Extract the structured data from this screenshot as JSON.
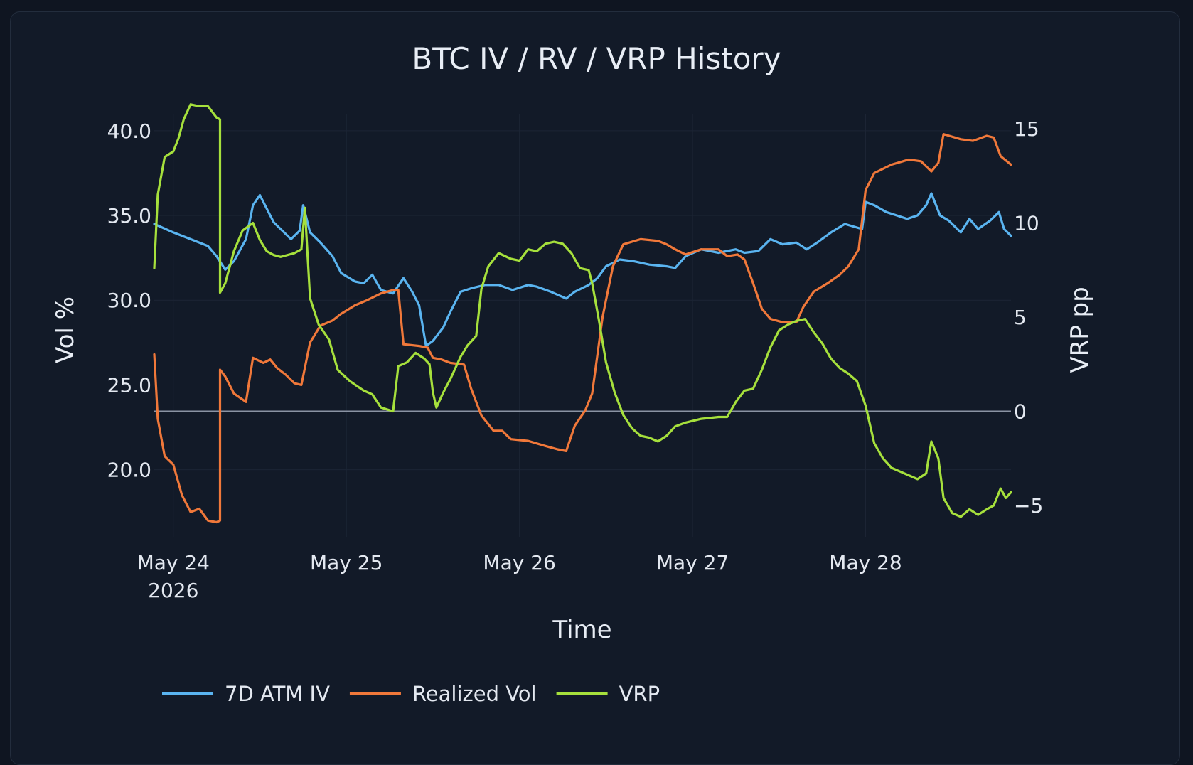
{
  "chart_data": {
    "type": "line",
    "title": "BTC IV / RV / VRP History",
    "xlabel": "Time",
    "ylabel": "Vol %",
    "y2label": "VRP pp",
    "x_ticks": [
      {
        "x": 0,
        "label": "May 24",
        "sub": "2026"
      },
      {
        "x": 1,
        "label": "May 25",
        "sub": ""
      },
      {
        "x": 2,
        "label": "May 26",
        "sub": ""
      },
      {
        "x": 3,
        "label": "May 27",
        "sub": ""
      },
      {
        "x": 4,
        "label": "May 28",
        "sub": ""
      }
    ],
    "x_note": "x values are days after May 24 2026 00:00",
    "xlim": [
      -0.11,
      4.84
    ],
    "ylim": [
      16.0,
      41.0
    ],
    "y_ticks": [
      {
        "v": 20,
        "label": "20.0"
      },
      {
        "v": 25,
        "label": "25.0"
      },
      {
        "v": 30,
        "label": "30.0"
      },
      {
        "v": 35,
        "label": "35.0"
      },
      {
        "v": 40,
        "label": "40.0"
      }
    ],
    "y2lim": [
      -6.7,
      15.8
    ],
    "y2_ticks": [
      {
        "v": -5,
        "label": "−5"
      },
      {
        "v": 0,
        "label": "0"
      },
      {
        "v": 5,
        "label": "5"
      },
      {
        "v": 10,
        "label": "10"
      },
      {
        "v": 15,
        "label": "15"
      }
    ],
    "zero_line_y2": 0,
    "grid": true,
    "legend_position": "bottom",
    "series": [
      {
        "name": "7D ATM IV",
        "color": "#5ab4f0",
        "axis": "y",
        "points": [
          [
            -0.11,
            34.5
          ],
          [
            0.0,
            34.0
          ],
          [
            0.1,
            33.6
          ],
          [
            0.2,
            33.2
          ],
          [
            0.25,
            32.6
          ],
          [
            0.3,
            31.8
          ],
          [
            0.35,
            32.3
          ],
          [
            0.42,
            33.6
          ],
          [
            0.46,
            35.6
          ],
          [
            0.5,
            36.2
          ],
          [
            0.54,
            35.4
          ],
          [
            0.58,
            34.6
          ],
          [
            0.62,
            34.2
          ],
          [
            0.68,
            33.6
          ],
          [
            0.73,
            34.1
          ],
          [
            0.75,
            35.6
          ],
          [
            0.79,
            34.0
          ],
          [
            0.85,
            33.4
          ],
          [
            0.92,
            32.6
          ],
          [
            0.97,
            31.6
          ],
          [
            1.05,
            31.1
          ],
          [
            1.1,
            31.0
          ],
          [
            1.15,
            31.5
          ],
          [
            1.2,
            30.6
          ],
          [
            1.27,
            30.4
          ],
          [
            1.33,
            31.3
          ],
          [
            1.38,
            30.5
          ],
          [
            1.42,
            29.7
          ],
          [
            1.46,
            27.3
          ],
          [
            1.5,
            27.6
          ],
          [
            1.56,
            28.4
          ],
          [
            1.6,
            29.3
          ],
          [
            1.66,
            30.5
          ],
          [
            1.72,
            30.7
          ],
          [
            1.8,
            30.9
          ],
          [
            1.88,
            30.9
          ],
          [
            1.96,
            30.6
          ],
          [
            2.05,
            30.9
          ],
          [
            2.1,
            30.8
          ],
          [
            2.18,
            30.5
          ],
          [
            2.27,
            30.1
          ],
          [
            2.32,
            30.5
          ],
          [
            2.4,
            30.9
          ],
          [
            2.45,
            31.3
          ],
          [
            2.5,
            32.0
          ],
          [
            2.58,
            32.4
          ],
          [
            2.66,
            32.3
          ],
          [
            2.75,
            32.1
          ],
          [
            2.85,
            32.0
          ],
          [
            2.9,
            31.9
          ],
          [
            2.96,
            32.6
          ],
          [
            3.05,
            33.0
          ],
          [
            3.15,
            32.8
          ],
          [
            3.25,
            33.0
          ],
          [
            3.3,
            32.8
          ],
          [
            3.38,
            32.9
          ],
          [
            3.45,
            33.6
          ],
          [
            3.52,
            33.3
          ],
          [
            3.6,
            33.4
          ],
          [
            3.66,
            33.0
          ],
          [
            3.72,
            33.4
          ],
          [
            3.8,
            34.0
          ],
          [
            3.88,
            34.5
          ],
          [
            3.98,
            34.2
          ],
          [
            4.0,
            35.8
          ],
          [
            4.05,
            35.6
          ],
          [
            4.12,
            35.2
          ],
          [
            4.18,
            35.0
          ],
          [
            4.24,
            34.8
          ],
          [
            4.3,
            35.0
          ],
          [
            4.35,
            35.6
          ],
          [
            4.38,
            36.3
          ],
          [
            4.43,
            35.0
          ],
          [
            4.48,
            34.7
          ],
          [
            4.55,
            34.0
          ],
          [
            4.6,
            34.8
          ],
          [
            4.65,
            34.2
          ],
          [
            4.72,
            34.7
          ],
          [
            4.77,
            35.2
          ],
          [
            4.8,
            34.2
          ],
          [
            4.84,
            33.8
          ]
        ]
      },
      {
        "name": "Realized Vol",
        "color": "#f0783a",
        "axis": "y",
        "points": [
          [
            -0.11,
            26.8
          ],
          [
            -0.09,
            23.0
          ],
          [
            -0.05,
            20.8
          ],
          [
            0.0,
            20.3
          ],
          [
            0.05,
            18.5
          ],
          [
            0.1,
            17.5
          ],
          [
            0.15,
            17.7
          ],
          [
            0.2,
            17.0
          ],
          [
            0.25,
            16.9
          ],
          [
            0.27,
            17.0
          ],
          [
            0.27,
            25.9
          ],
          [
            0.3,
            25.5
          ],
          [
            0.35,
            24.5
          ],
          [
            0.42,
            24.0
          ],
          [
            0.46,
            26.6
          ],
          [
            0.52,
            26.3
          ],
          [
            0.56,
            26.5
          ],
          [
            0.6,
            26.0
          ],
          [
            0.65,
            25.6
          ],
          [
            0.7,
            25.1
          ],
          [
            0.74,
            25.0
          ],
          [
            0.79,
            27.5
          ],
          [
            0.85,
            28.5
          ],
          [
            0.92,
            28.8
          ],
          [
            0.97,
            29.2
          ],
          [
            1.05,
            29.7
          ],
          [
            1.12,
            30.0
          ],
          [
            1.2,
            30.4
          ],
          [
            1.27,
            30.6
          ],
          [
            1.3,
            30.6
          ],
          [
            1.33,
            27.4
          ],
          [
            1.42,
            27.3
          ],
          [
            1.47,
            27.2
          ],
          [
            1.5,
            26.6
          ],
          [
            1.55,
            26.5
          ],
          [
            1.6,
            26.3
          ],
          [
            1.68,
            26.2
          ],
          [
            1.72,
            24.8
          ],
          [
            1.78,
            23.2
          ],
          [
            1.85,
            22.3
          ],
          [
            1.9,
            22.3
          ],
          [
            1.95,
            21.8
          ],
          [
            2.05,
            21.7
          ],
          [
            2.15,
            21.4
          ],
          [
            2.22,
            21.2
          ],
          [
            2.27,
            21.1
          ],
          [
            2.32,
            22.6
          ],
          [
            2.38,
            23.5
          ],
          [
            2.42,
            24.5
          ],
          [
            2.48,
            29.0
          ],
          [
            2.54,
            32.0
          ],
          [
            2.6,
            33.3
          ],
          [
            2.7,
            33.6
          ],
          [
            2.8,
            33.5
          ],
          [
            2.85,
            33.3
          ],
          [
            2.9,
            33.0
          ],
          [
            2.96,
            32.7
          ],
          [
            3.05,
            33.0
          ],
          [
            3.15,
            33.0
          ],
          [
            3.2,
            32.6
          ],
          [
            3.26,
            32.7
          ],
          [
            3.3,
            32.4
          ],
          [
            3.35,
            31.0
          ],
          [
            3.4,
            29.5
          ],
          [
            3.45,
            28.9
          ],
          [
            3.52,
            28.7
          ],
          [
            3.6,
            28.7
          ],
          [
            3.64,
            29.6
          ],
          [
            3.7,
            30.5
          ],
          [
            3.78,
            31.0
          ],
          [
            3.85,
            31.5
          ],
          [
            3.9,
            32.0
          ],
          [
            3.96,
            33.0
          ],
          [
            4.0,
            36.5
          ],
          [
            4.05,
            37.5
          ],
          [
            4.15,
            38.0
          ],
          [
            4.25,
            38.3
          ],
          [
            4.32,
            38.2
          ],
          [
            4.38,
            37.6
          ],
          [
            4.42,
            38.1
          ],
          [
            4.45,
            39.8
          ],
          [
            4.55,
            39.5
          ],
          [
            4.62,
            39.4
          ],
          [
            4.7,
            39.7
          ],
          [
            4.74,
            39.6
          ],
          [
            4.78,
            38.5
          ],
          [
            4.84,
            38.0
          ]
        ]
      },
      {
        "name": "VRP",
        "color": "#a6e03c",
        "axis": "y2",
        "points": [
          [
            -0.11,
            7.6
          ],
          [
            -0.09,
            11.5
          ],
          [
            -0.05,
            13.5
          ],
          [
            0.0,
            13.8
          ],
          [
            0.03,
            14.5
          ],
          [
            0.06,
            15.5
          ],
          [
            0.1,
            16.3
          ],
          [
            0.15,
            16.2
          ],
          [
            0.2,
            16.2
          ],
          [
            0.25,
            15.6
          ],
          [
            0.27,
            15.5
          ],
          [
            0.27,
            6.3
          ],
          [
            0.3,
            6.8
          ],
          [
            0.35,
            8.5
          ],
          [
            0.4,
            9.6
          ],
          [
            0.46,
            10.0
          ],
          [
            0.5,
            9.1
          ],
          [
            0.54,
            8.5
          ],
          [
            0.58,
            8.3
          ],
          [
            0.62,
            8.2
          ],
          [
            0.7,
            8.4
          ],
          [
            0.74,
            8.6
          ],
          [
            0.76,
            10.8
          ],
          [
            0.79,
            6.0
          ],
          [
            0.84,
            4.6
          ],
          [
            0.9,
            3.8
          ],
          [
            0.95,
            2.2
          ],
          [
            1.02,
            1.6
          ],
          [
            1.1,
            1.1
          ],
          [
            1.15,
            0.9
          ],
          [
            1.2,
            0.2
          ],
          [
            1.27,
            0.0
          ],
          [
            1.3,
            2.4
          ],
          [
            1.35,
            2.6
          ],
          [
            1.4,
            3.1
          ],
          [
            1.45,
            2.8
          ],
          [
            1.48,
            2.5
          ],
          [
            1.5,
            1.0
          ],
          [
            1.52,
            0.2
          ],
          [
            1.56,
            1.0
          ],
          [
            1.6,
            1.7
          ],
          [
            1.66,
            2.9
          ],
          [
            1.7,
            3.5
          ],
          [
            1.75,
            4.0
          ],
          [
            1.78,
            6.5
          ],
          [
            1.82,
            7.7
          ],
          [
            1.88,
            8.4
          ],
          [
            1.95,
            8.1
          ],
          [
            2.0,
            8.0
          ],
          [
            2.05,
            8.6
          ],
          [
            2.1,
            8.5
          ],
          [
            2.15,
            8.9
          ],
          [
            2.2,
            9.0
          ],
          [
            2.25,
            8.9
          ],
          [
            2.3,
            8.4
          ],
          [
            2.35,
            7.6
          ],
          [
            2.4,
            7.5
          ],
          [
            2.42,
            6.8
          ],
          [
            2.46,
            4.8
          ],
          [
            2.5,
            2.6
          ],
          [
            2.55,
            1.0
          ],
          [
            2.6,
            -0.2
          ],
          [
            2.65,
            -0.9
          ],
          [
            2.7,
            -1.3
          ],
          [
            2.75,
            -1.4
          ],
          [
            2.8,
            -1.6
          ],
          [
            2.85,
            -1.3
          ],
          [
            2.9,
            -0.8
          ],
          [
            2.96,
            -0.6
          ],
          [
            3.05,
            -0.4
          ],
          [
            3.15,
            -0.3
          ],
          [
            3.2,
            -0.3
          ],
          [
            3.25,
            0.5
          ],
          [
            3.3,
            1.1
          ],
          [
            3.35,
            1.2
          ],
          [
            3.4,
            2.2
          ],
          [
            3.45,
            3.4
          ],
          [
            3.5,
            4.3
          ],
          [
            3.55,
            4.6
          ],
          [
            3.6,
            4.8
          ],
          [
            3.65,
            4.9
          ],
          [
            3.7,
            4.2
          ],
          [
            3.75,
            3.6
          ],
          [
            3.8,
            2.8
          ],
          [
            3.85,
            2.3
          ],
          [
            3.9,
            2.0
          ],
          [
            3.95,
            1.6
          ],
          [
            4.0,
            0.3
          ],
          [
            4.05,
            -1.7
          ],
          [
            4.1,
            -2.5
          ],
          [
            4.15,
            -3.0
          ],
          [
            4.2,
            -3.2
          ],
          [
            4.25,
            -3.4
          ],
          [
            4.3,
            -3.6
          ],
          [
            4.35,
            -3.3
          ],
          [
            4.38,
            -1.6
          ],
          [
            4.42,
            -2.5
          ],
          [
            4.45,
            -4.6
          ],
          [
            4.5,
            -5.4
          ],
          [
            4.55,
            -5.6
          ],
          [
            4.6,
            -5.2
          ],
          [
            4.65,
            -5.5
          ],
          [
            4.7,
            -5.2
          ],
          [
            4.74,
            -5.0
          ],
          [
            4.78,
            -4.1
          ],
          [
            4.81,
            -4.6
          ],
          [
            4.84,
            -4.3
          ]
        ]
      }
    ]
  }
}
